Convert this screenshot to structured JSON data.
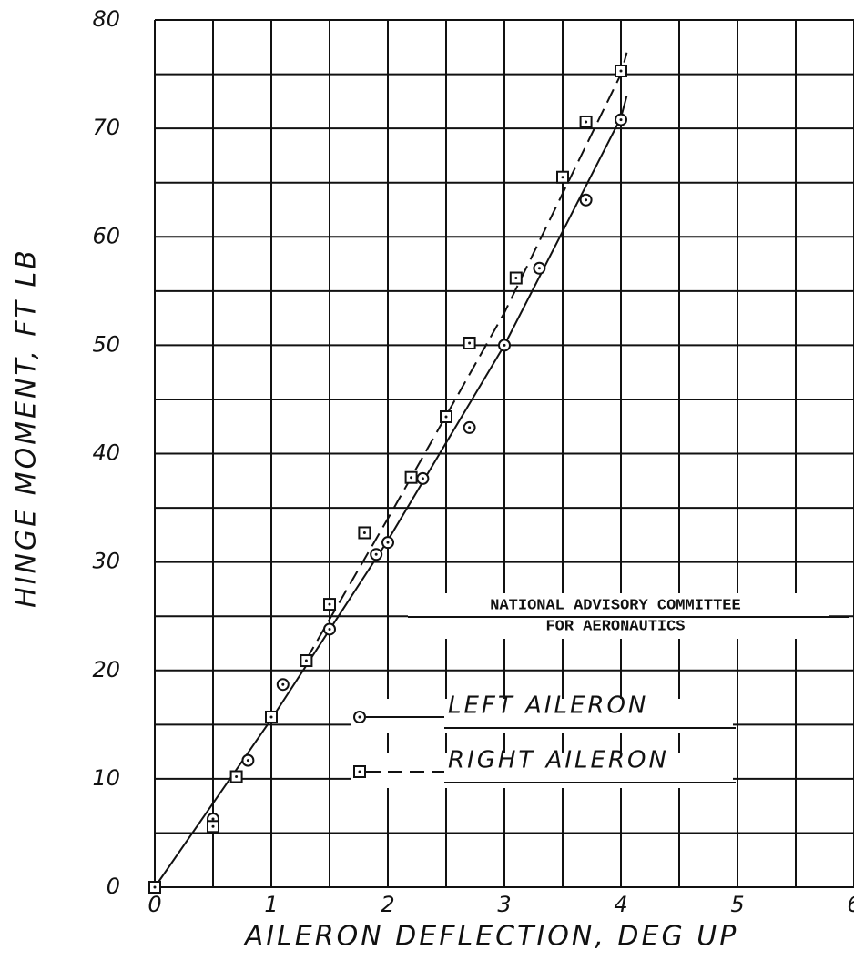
{
  "chart_data": {
    "type": "scatter",
    "x_label": "AILERON DEFLECTION, DEG UP",
    "y_label": "HINGE MOMENT, FT LB",
    "annotation": [
      "NATIONAL ADVISORY COMMITTEE",
      "FOR AERONAUTICS"
    ],
    "xlim": [
      0,
      6
    ],
    "ylim": [
      0,
      80
    ],
    "xticks": [
      0,
      1,
      2,
      3,
      4,
      5,
      6
    ],
    "yticks": [
      0,
      10,
      20,
      30,
      40,
      50,
      60,
      70,
      80
    ],
    "grid": true,
    "series": [
      {
        "name": "LEFT AILERON",
        "marker": "circle",
        "line": "solid",
        "color": "#111111",
        "x": [
          0,
          0.5,
          0.8,
          1.1,
          1.5,
          1.9,
          2.0,
          2.3,
          2.7,
          3.0,
          3.3,
          3.7,
          4.0
        ],
        "values": [
          0,
          6.3,
          11.7,
          18.7,
          23.8,
          30.7,
          31.8,
          37.7,
          42.4,
          50.0,
          57.1,
          63.4,
          70.8
        ],
        "fit": {
          "x": [
            0,
            1,
            2,
            3,
            4,
            4.05
          ],
          "values": [
            0,
            15.5,
            32,
            50,
            71,
            73
          ]
        }
      },
      {
        "name": "RIGHT AILERON",
        "marker": "square",
        "line": "dashed",
        "color": "#111111",
        "x": [
          0,
          0.5,
          0.7,
          1.0,
          1.3,
          1.5,
          1.8,
          2.2,
          2.5,
          2.7,
          3.1,
          3.5,
          3.7,
          4.0
        ],
        "values": [
          0,
          5.6,
          10.2,
          15.7,
          20.9,
          26.1,
          32.7,
          37.8,
          43.4,
          50.2,
          56.2,
          65.5,
          70.6,
          75.3
        ],
        "fit": {
          "x": [
            1.3,
            2,
            3,
            4,
            4.05
          ],
          "values": [
            21,
            34,
            53,
            75,
            77
          ]
        }
      }
    ]
  }
}
